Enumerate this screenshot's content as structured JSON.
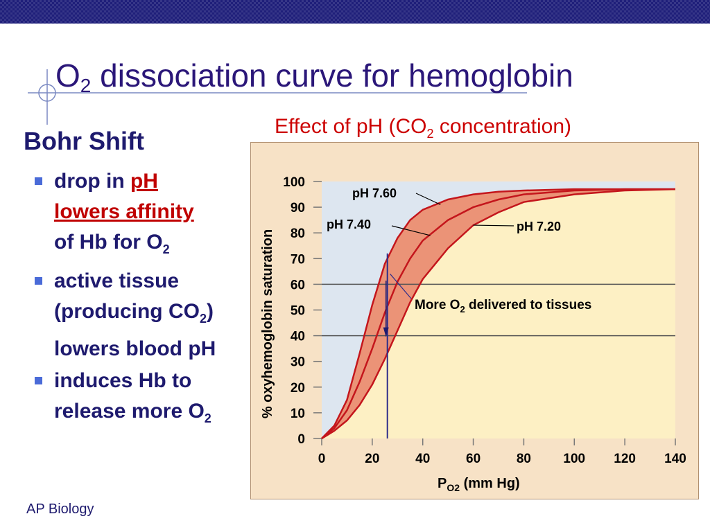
{
  "slide": {
    "title_main": "O",
    "title_sub": "2",
    "title_rest": " dissociation curve for hemoglobin",
    "footer": "AP Biology"
  },
  "sidebar": {
    "heading": "Bohr Shift",
    "bullet1": {
      "part1": "drop in ",
      "highlight1": "pH",
      "highlight2": "lowers affinity",
      "part2": "of Hb for O",
      "sub": "2"
    },
    "bullet2": {
      "part1": "active tissue (producing CO",
      "sub": "2",
      "part2": ") lowers blood pH"
    },
    "bullet3": {
      "part1": "induces Hb to release more O",
      "sub": "2"
    }
  },
  "chart_data": {
    "type": "line",
    "title": {
      "part1": "Effect of pH (CO",
      "sub": "2",
      "part2": " concentration)"
    },
    "ylabel": "% oxyhemoglobin saturation",
    "xlabel": {
      "main": "P",
      "sub": "O2",
      "rest": " (mm Hg)"
    },
    "xlim": [
      0,
      140
    ],
    "ylim": [
      0,
      100
    ],
    "xticks": [
      0,
      20,
      40,
      60,
      80,
      100,
      120,
      140
    ],
    "yticks": [
      0,
      10,
      20,
      30,
      40,
      50,
      60,
      70,
      80,
      90,
      100
    ],
    "series": [
      {
        "name": "pH 7.60",
        "x": [
          0,
          5,
          10,
          15,
          20,
          25,
          30,
          35,
          40,
          50,
          60,
          70,
          80,
          100,
          120,
          140
        ],
        "y": [
          0,
          5,
          15,
          33,
          52,
          68,
          78,
          85,
          89,
          93,
          95,
          96,
          96.5,
          97,
          97,
          97
        ]
      },
      {
        "name": "pH 7.40",
        "x": [
          0,
          5,
          10,
          15,
          20,
          25,
          30,
          35,
          40,
          50,
          60,
          70,
          80,
          100,
          120,
          140
        ],
        "y": [
          0,
          4,
          11,
          22,
          35,
          49,
          61,
          70,
          77,
          85,
          90,
          93,
          95,
          96.5,
          97,
          97
        ]
      },
      {
        "name": "pH 7.20",
        "x": [
          0,
          5,
          10,
          15,
          20,
          25,
          30,
          35,
          40,
          50,
          60,
          70,
          80,
          100,
          120,
          140
        ],
        "y": [
          0,
          3,
          7,
          13,
          21,
          31,
          42,
          53,
          62,
          74,
          83,
          88,
          92,
          95,
          96.5,
          97
        ]
      }
    ],
    "reference_lines": {
      "x": 26,
      "y": [
        40,
        60
      ]
    },
    "annotation": {
      "part1": "More O",
      "sub": "2",
      "part2": " delivered to tissues"
    },
    "colors": {
      "background": "#f7e2c6",
      "plot_area": "#fdf0c4",
      "plot_area_upper_left": "#dde6f0",
      "band_fill": "#e8836a",
      "curve": "#c4161c",
      "reference_line": "#2e2e8a",
      "title": "#cc0000"
    }
  },
  "colors": {
    "title": "#2b1779",
    "text": "#1e1a6e",
    "accent_red": "#c00000",
    "bullet_square": "#4a6bd8",
    "top_bar": "#1f1f7a"
  }
}
